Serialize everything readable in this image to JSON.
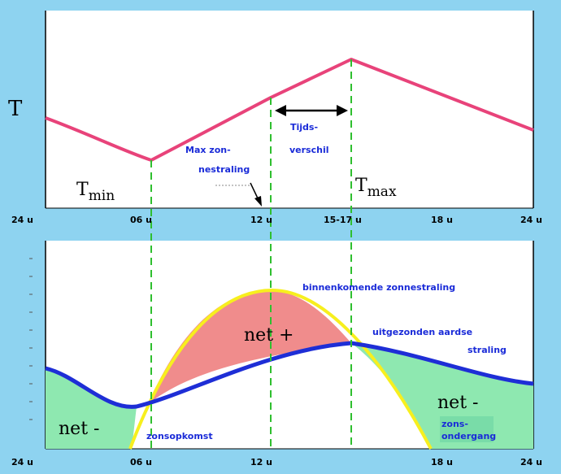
{
  "colors": {
    "background": "#8ed3f0",
    "panel": "#ffffff",
    "temperature_curve": "#e8437a",
    "guide_lines": "#2fbf2f",
    "incoming_radiation_curve": "#f7ef1e",
    "outgoing_radiation_curve": "#1e2ed6",
    "net_positive_fill": "#f08c8c",
    "net_negative_fill": "#8ee8b0",
    "label_blue": "#1a2bd8"
  },
  "top_panel": {
    "axis_label_T": "T",
    "tmin_T": "T",
    "tmin_sub": "min",
    "tmax_T": "T",
    "tmax_sub": "max",
    "max_radiation_line1": "Max zon-",
    "max_radiation_line2": "nestraling",
    "time_difference_line1": "Tijds-",
    "time_difference_line2": "verschil",
    "ticks": [
      "24 u",
      "06 u",
      "12 u",
      "15-17 u",
      "18 u",
      "24 u"
    ]
  },
  "bottom_panel": {
    "incoming_label": "binnenkomende zonnestraling",
    "outgoing_line1": "uitgezonden aardse",
    "outgoing_line2": "straling",
    "net_plus": "net +",
    "net_minus_left": "net -",
    "net_minus_right": "net -",
    "sunrise": "zonsopkomst",
    "sunset_line1": "zons-",
    "sunset_line2": "ondergang",
    "ticks": [
      "24 u",
      "06 u",
      "12 u",
      "18 u",
      "24 u"
    ]
  }
}
